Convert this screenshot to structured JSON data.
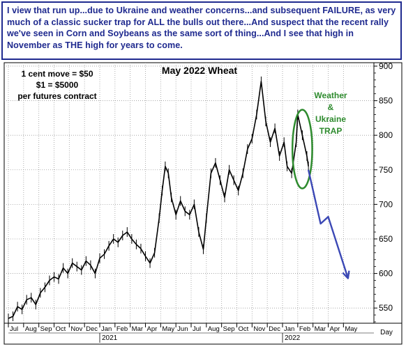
{
  "caption": "I view that run up...due to Ukraine and weather concerns...and subsequent FAILURE, as very much of a classic sucker trap for ALL the bulls out there...And suspect that the recent rally we've seen in Corn and Soybeans as the same sort of thing...And I see that high in November as THE high for years to come.",
  "chart_data": {
    "type": "line",
    "title": "May 2022 Wheat",
    "notes": [
      "1 cent move = $50",
      "$1 = $5000",
      "per futures contract"
    ],
    "annotation": [
      "Weather",
      "&",
      "Ukraine",
      "TRAP"
    ],
    "x_tick_labels": [
      "Jul",
      "Aug",
      "Sep",
      "Oct",
      "Nov",
      "Dec",
      "Jan",
      "Feb",
      "Mar",
      "Apr",
      "May",
      "Jun",
      "Jul",
      "Aug",
      "Sep",
      "Oct",
      "Nov",
      "Dec",
      "Jan",
      "Feb",
      "Mar",
      "Apr",
      "May"
    ],
    "year_labels": [
      {
        "label": "2021",
        "month_index": 6
      },
      {
        "label": "2022",
        "month_index": 18
      }
    ],
    "x_axis_label": "Day",
    "y_ticks": [
      550,
      600,
      650,
      700,
      750,
      800,
      850,
      900
    ],
    "ylim": [
      528,
      905
    ],
    "xlim": [
      0,
      24.0
    ],
    "y_scale": "linear",
    "grid": "dotted",
    "price_line": [
      [
        0.0,
        535
      ],
      [
        0.3,
        538
      ],
      [
        0.6,
        552
      ],
      [
        0.9,
        548
      ],
      [
        1.2,
        562
      ],
      [
        1.5,
        565
      ],
      [
        1.8,
        555
      ],
      [
        2.1,
        572
      ],
      [
        2.4,
        580
      ],
      [
        2.7,
        590
      ],
      [
        3.0,
        595
      ],
      [
        3.3,
        592
      ],
      [
        3.6,
        608
      ],
      [
        3.9,
        600
      ],
      [
        4.2,
        615
      ],
      [
        4.5,
        610
      ],
      [
        4.8,
        605
      ],
      [
        5.1,
        618
      ],
      [
        5.4,
        612
      ],
      [
        5.7,
        600
      ],
      [
        6.0,
        622
      ],
      [
        6.3,
        628
      ],
      [
        6.6,
        640
      ],
      [
        6.9,
        650
      ],
      [
        7.2,
        645
      ],
      [
        7.5,
        655
      ],
      [
        7.8,
        660
      ],
      [
        8.1,
        650
      ],
      [
        8.4,
        642
      ],
      [
        8.7,
        636
      ],
      [
        9.0,
        625
      ],
      [
        9.3,
        615
      ],
      [
        9.6,
        630
      ],
      [
        9.9,
        680
      ],
      [
        10.1,
        720
      ],
      [
        10.3,
        755
      ],
      [
        10.5,
        745
      ],
      [
        10.7,
        710
      ],
      [
        11.0,
        685
      ],
      [
        11.3,
        705
      ],
      [
        11.6,
        690
      ],
      [
        11.9,
        685
      ],
      [
        12.2,
        700
      ],
      [
        12.5,
        660
      ],
      [
        12.8,
        635
      ],
      [
        13.0,
        680
      ],
      [
        13.3,
        745
      ],
      [
        13.6,
        760
      ],
      [
        13.9,
        735
      ],
      [
        14.2,
        710
      ],
      [
        14.5,
        750
      ],
      [
        14.8,
        735
      ],
      [
        15.1,
        720
      ],
      [
        15.4,
        745
      ],
      [
        15.7,
        780
      ],
      [
        16.0,
        795
      ],
      [
        16.3,
        830
      ],
      [
        16.6,
        878
      ],
      [
        16.9,
        820
      ],
      [
        17.2,
        790
      ],
      [
        17.5,
        810
      ],
      [
        17.8,
        770
      ],
      [
        18.1,
        790
      ],
      [
        18.3,
        755
      ],
      [
        18.6,
        745
      ],
      [
        18.9,
        790
      ],
      [
        19.0,
        830
      ],
      [
        19.3,
        800
      ],
      [
        19.6,
        770
      ],
      [
        19.7,
        755
      ]
    ],
    "projection_arrow": [
      [
        19.7,
        750
      ],
      [
        20.5,
        672
      ],
      [
        21.0,
        682
      ],
      [
        22.3,
        593
      ]
    ],
    "trap_ellipse": {
      "center": [
        19.3,
        780
      ],
      "radii": [
        0.65,
        57
      ]
    },
    "colors": {
      "price": "#000000",
      "caption": "#1f2a8f",
      "trap": "#2e8b2e",
      "arrow": "#3b48b5"
    }
  }
}
